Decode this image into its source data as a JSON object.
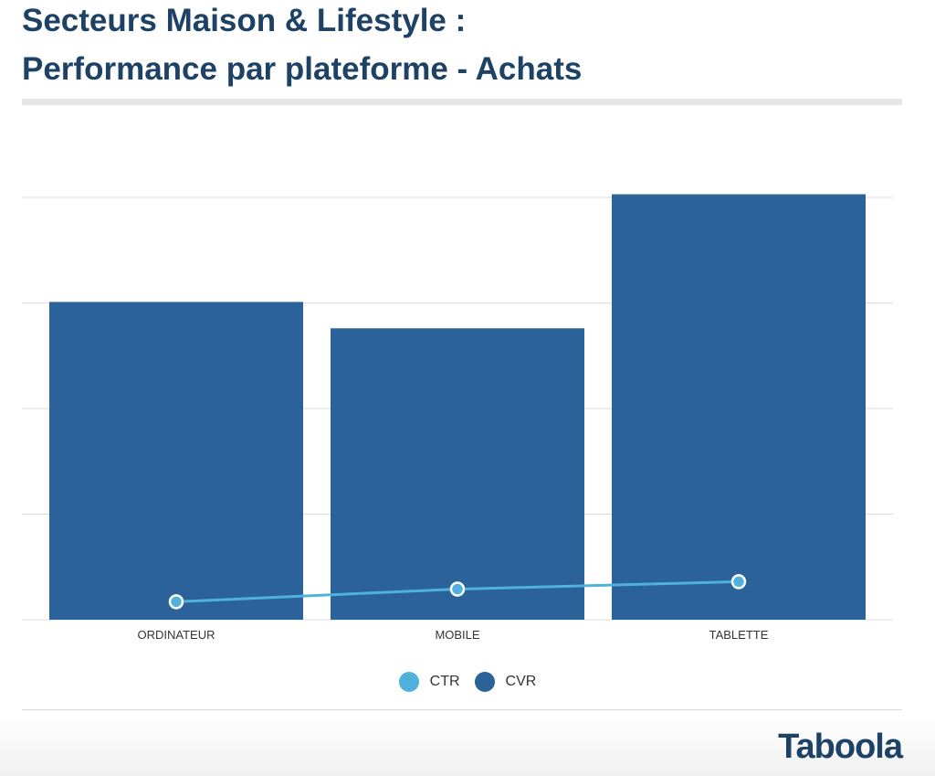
{
  "title": {
    "line1": "Secteurs Maison & Lifestyle :",
    "line2": "Performance par plateforme - Achats"
  },
  "colors": {
    "title": "#1d4266",
    "bar": "#2b6299",
    "line": "#4fb1dc",
    "grid": "#dcdcdc"
  },
  "chart_data": {
    "type": "bar",
    "categories": [
      "ORDINATEUR",
      "MOBILE",
      "TABLETTE"
    ],
    "series": [
      {
        "name": "CVR",
        "type": "bar",
        "values": [
          3.01,
          2.76,
          4.03
        ]
      },
      {
        "name": "CTR",
        "type": "line",
        "values": [
          0.17,
          0.29,
          0.36
        ]
      }
    ],
    "ylim": [
      0,
      4
    ],
    "grid": true,
    "legend_position": "bottom-center",
    "xlabel": "",
    "ylabel": ""
  },
  "legend": [
    {
      "label": "CTR",
      "color": "#4fb1dc"
    },
    {
      "label": "CVR",
      "color": "#2b6299"
    }
  ],
  "logo": {
    "text": "Taboola",
    "icon": "taboola-logo"
  }
}
